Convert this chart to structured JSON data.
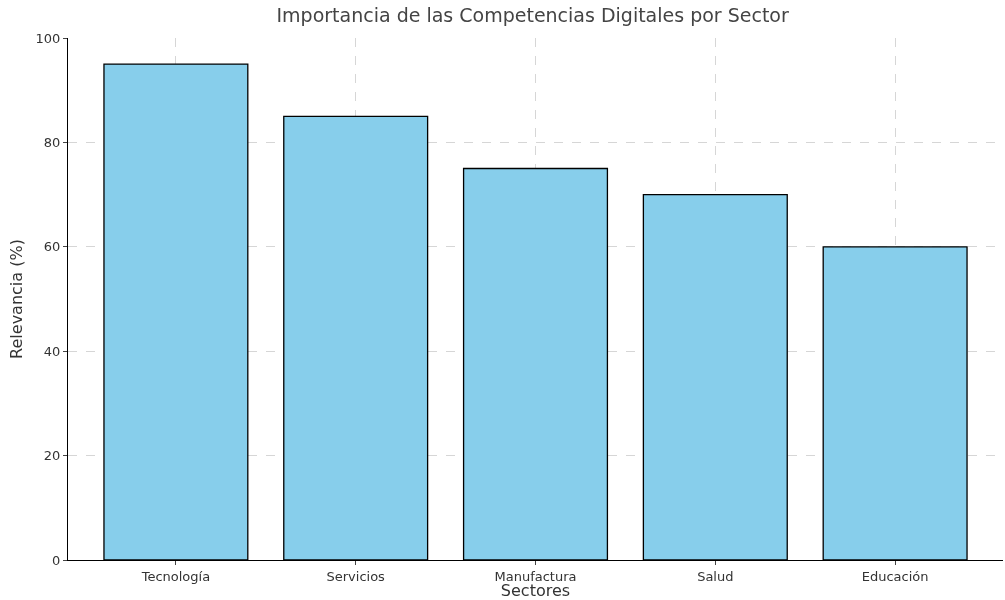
{
  "chart_data": {
    "type": "bar",
    "title": "Importancia de las Competencias Digitales por Sector",
    "xlabel": "Sectores",
    "ylabel": "Relevancia (%)",
    "categories": [
      "Tecnología",
      "Servicios",
      "Manufactura",
      "Salud",
      "Educación"
    ],
    "values": [
      95,
      85,
      75,
      70,
      60
    ],
    "color": "#87ceeb",
    "ylim": [
      0,
      100
    ],
    "yticks": [
      0,
      20,
      40,
      60,
      80,
      100
    ],
    "grid": true
  }
}
